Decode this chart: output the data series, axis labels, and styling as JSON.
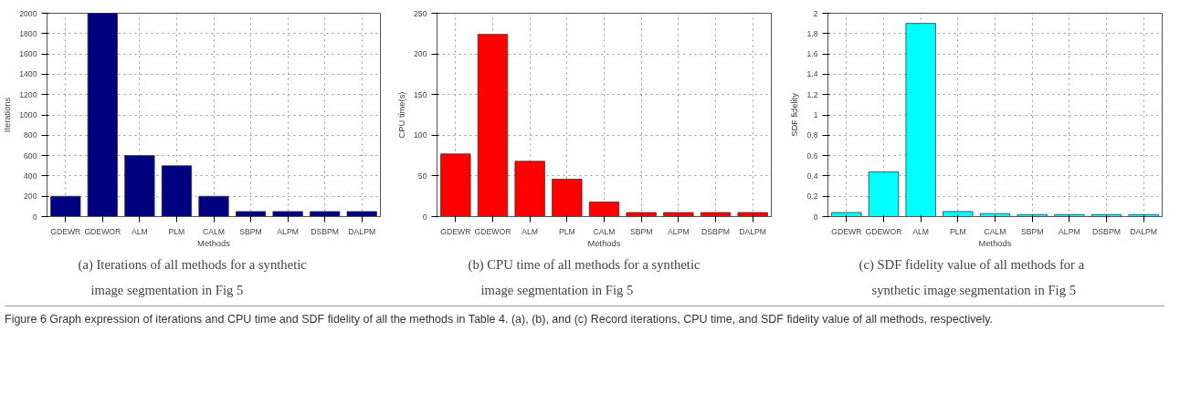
{
  "chart_data": [
    {
      "type": "bar",
      "title": "(a) Iterations of all methods for a synthetic image segmentation in Fig 5",
      "xlabel": "Methods",
      "ylabel": "Iterations",
      "categories": [
        "GDEWR",
        "GDEWOR",
        "ALM",
        "PLM",
        "CALM",
        "SBPM",
        "ALPM",
        "DSBPM",
        "DALPM"
      ],
      "values": [
        200,
        2000,
        600,
        500,
        200,
        50,
        50,
        50,
        50
      ],
      "color": "#000080",
      "ylim": [
        0,
        2000
      ],
      "yticks": [
        0,
        200,
        400,
        600,
        800,
        1000,
        1200,
        1400,
        1600,
        1800,
        2000
      ],
      "grid": true,
      "annotations": [
        "Figure 6 Graph expression of iterations and CPU time and SDF fidelity of all the methods in Table 4. (a), (b), and (c) Record iterations, CPU time, and SDF fidelity value of all methods, respectively."
      ]
    },
    {
      "type": "bar",
      "title": "(b) CPU time of all methods for a synthetic image segmentation in Fig 5",
      "xlabel": "Methods",
      "ylabel": "CPU time(s)",
      "categories": [
        "GDEWR",
        "GDEWOR",
        "ALM",
        "PLM",
        "CALM",
        "SBPM",
        "ALPM",
        "DSBPM",
        "DALPM"
      ],
      "values": [
        77,
        224,
        68,
        46,
        18,
        5,
        5,
        5,
        5
      ],
      "color": "#ff0000",
      "ylim": [
        0,
        250
      ],
      "yticks": [
        0,
        50,
        100,
        150,
        200,
        250
      ],
      "grid": true
    },
    {
      "type": "bar",
      "title": "(c) SDF fidelity value of all methods for a synthetic image segmentation in Fig 5",
      "xlabel": "Methods",
      "ylabel": "SDF fidelity",
      "categories": [
        "GDEWR",
        "GDEWOR",
        "ALM",
        "PLM",
        "CALM",
        "SBPM",
        "ALPM",
        "DSBPM",
        "DALPM"
      ],
      "values": [
        0.04,
        0.44,
        1.9,
        0.05,
        0.03,
        0.02,
        0.02,
        0.02,
        0.02
      ],
      "color": "#00ffff",
      "ylim": [
        0,
        2
      ],
      "yticks": [
        0,
        0.2,
        0.4,
        0.6,
        0.8,
        1,
        1.2,
        1.4,
        1.6,
        1.8,
        2
      ],
      "grid": true
    }
  ]
}
